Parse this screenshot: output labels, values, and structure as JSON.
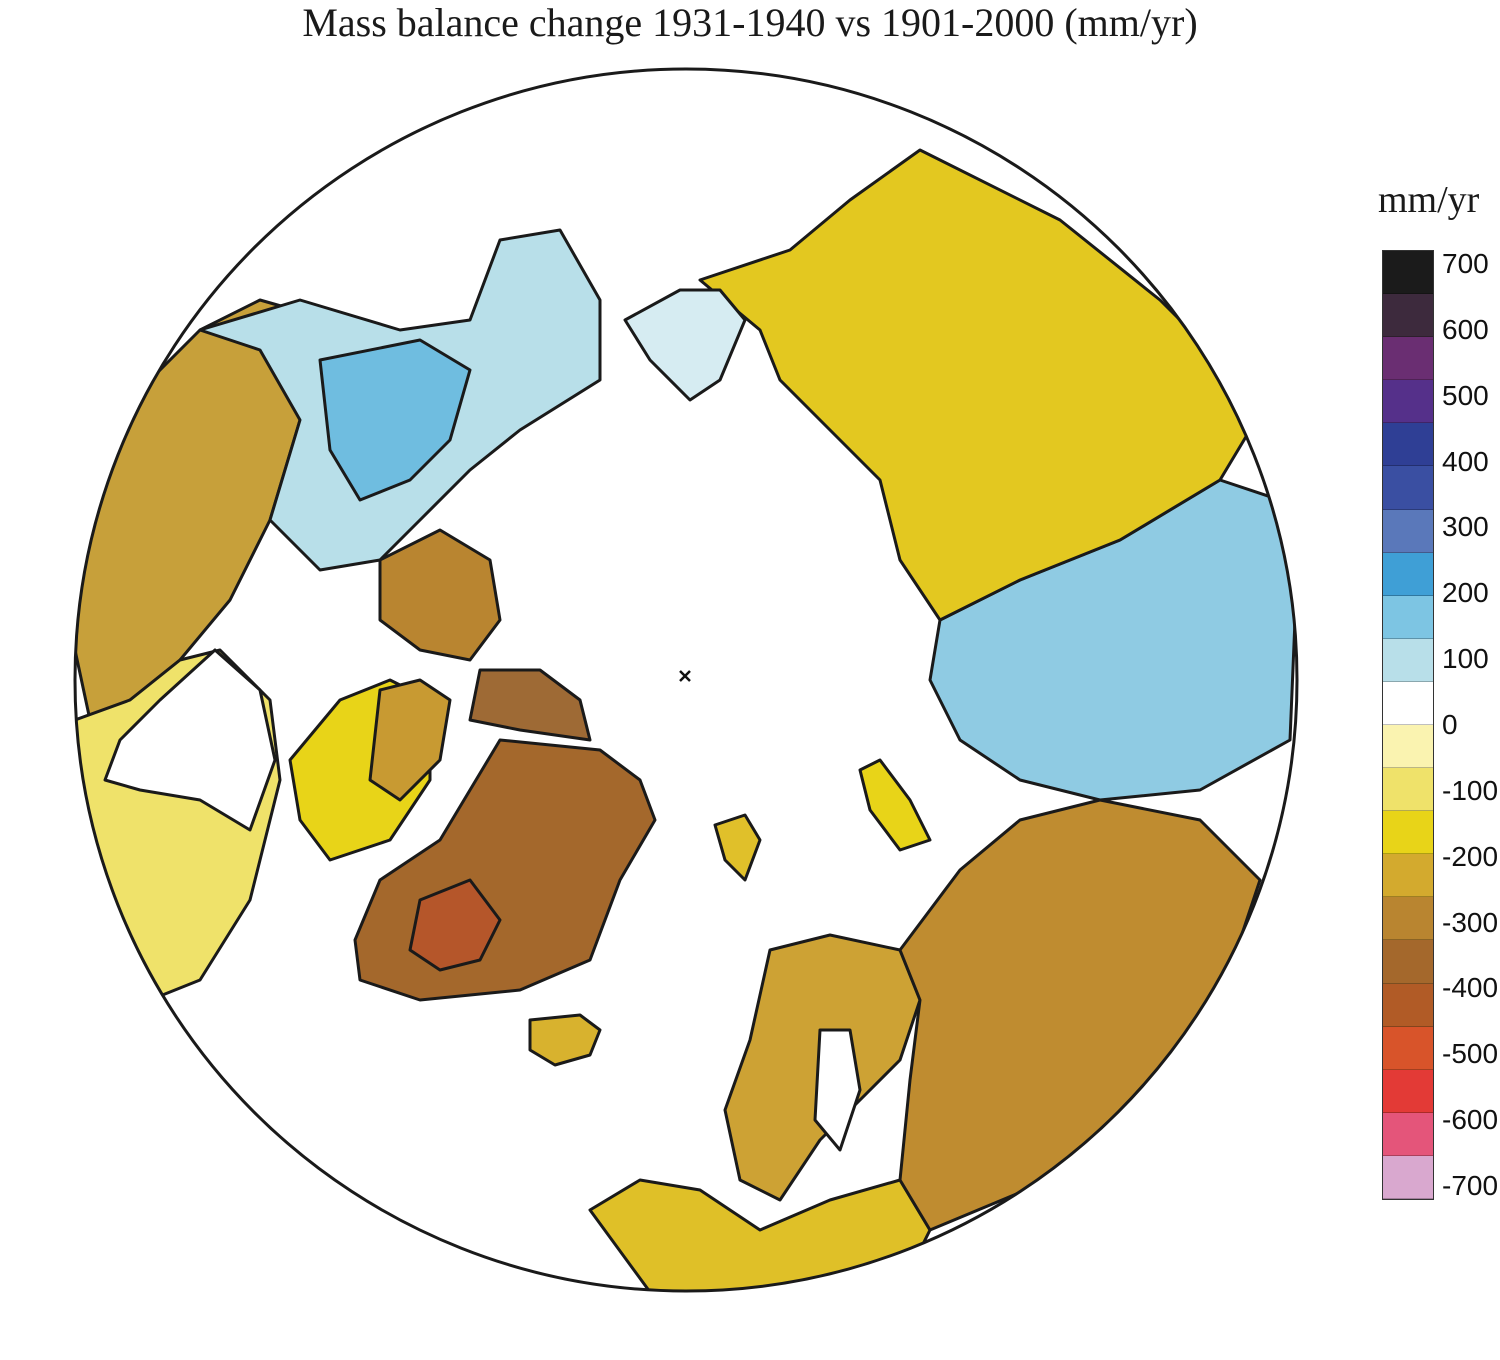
{
  "title": "Mass balance change 1931-1940 vs 1901-2000 (mm/yr)",
  "legend": {
    "unit": "mm/yr",
    "tick_labels": [
      "700",
      "600",
      "500",
      "400",
      "300",
      "200",
      "100",
      "0",
      "-100",
      "-200",
      "-300",
      "-400",
      "-500",
      "-600",
      "-700"
    ],
    "range": [
      -700,
      700
    ],
    "colors": [
      "#1b1b1b",
      "#3d2a3d",
      "#6a2e72",
      "#55308a",
      "#2f3f95",
      "#3a4fa2",
      "#5a78ba",
      "#3f9fd6",
      "#7dc5e3",
      "#b8dfe9",
      "#ffffff",
      "#faf3b0",
      "#efe26a",
      "#e8d418",
      "#d3aa2e",
      "#b98530",
      "#a4682c",
      "#b15b26",
      "#d8542a",
      "#e33a36",
      "#e4557a",
      "#d9a8cf"
    ]
  },
  "map": {
    "projection": "north polar stereographic",
    "regions": [
      {
        "name": "greenland",
        "value": -320,
        "color": "#a4682c"
      },
      {
        "name": "greenland-south-core",
        "value": -420,
        "color": "#b5562a"
      },
      {
        "name": "canadian-arctic-islands",
        "value": -280,
        "color": "#b98530"
      },
      {
        "name": "ellesmere",
        "value": -320,
        "color": "#9e6a35"
      },
      {
        "name": "baffin",
        "value": -200,
        "color": "#c89a32"
      },
      {
        "name": "quebec-labrador",
        "value": -120,
        "color": "#e8d418"
      },
      {
        "name": "canada-west",
        "value": -200,
        "color": "#c7a03a"
      },
      {
        "name": "canada-central",
        "value": -100,
        "color": "#efe26a"
      },
      {
        "name": "alaska",
        "value": 50,
        "color": "#b8dfe9"
      },
      {
        "name": "alaska-core",
        "value": 150,
        "color": "#6fbde0"
      },
      {
        "name": "chukotka",
        "value": 30,
        "color": "#d6ecf2"
      },
      {
        "name": "east-siberia",
        "value": -150,
        "color": "#e3c820"
      },
      {
        "name": "central-siberia",
        "value": 120,
        "color": "#8fcbe3"
      },
      {
        "name": "west-siberia-russia",
        "value": -250,
        "color": "#bf8c30"
      },
      {
        "name": "scandinavia",
        "value": -180,
        "color": "#cda234"
      },
      {
        "name": "europe-west",
        "value": -130,
        "color": "#dfc028"
      },
      {
        "name": "iceland",
        "value": -150,
        "color": "#d8b22e"
      },
      {
        "name": "svalbard",
        "value": -130,
        "color": "#e0c02a"
      },
      {
        "name": "novaya-zemlya",
        "value": -120,
        "color": "#e8d418"
      }
    ]
  }
}
